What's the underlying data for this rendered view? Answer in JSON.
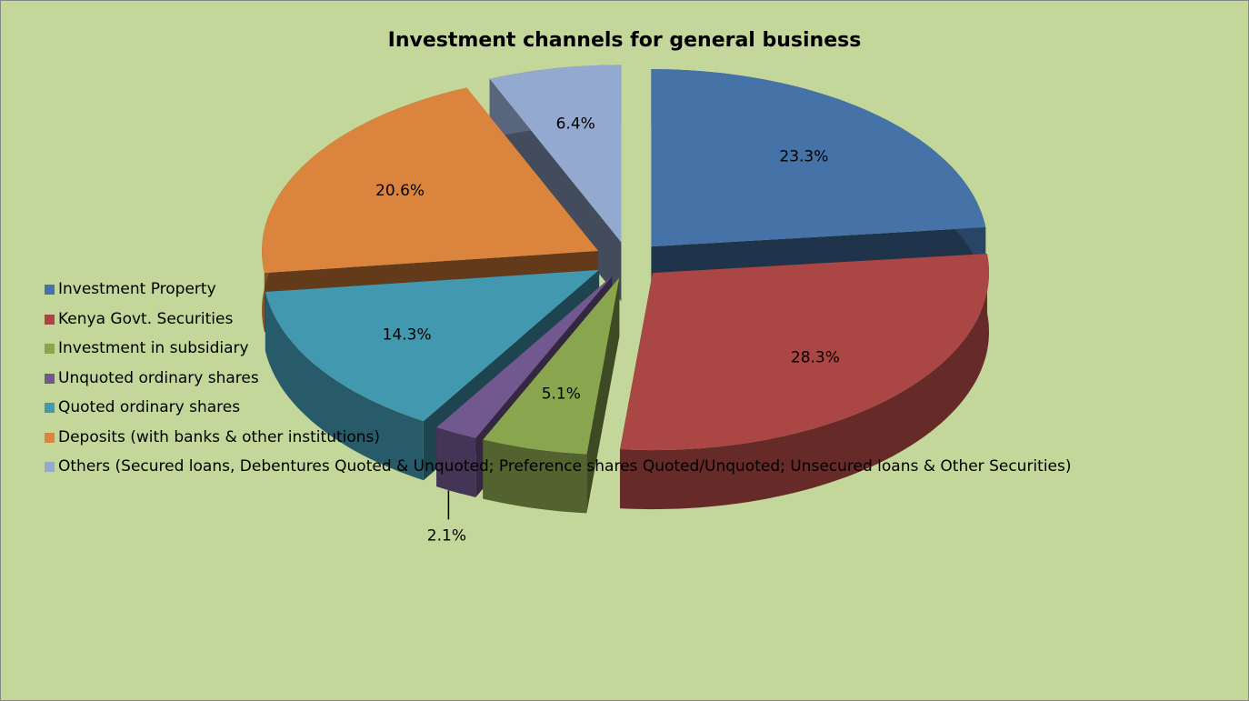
{
  "chart_data": {
    "type": "pie3d",
    "title": "Investment channels for general business",
    "categories": [
      "Investment Property",
      "Kenya Govt. Securities",
      "Investment in subsidiary",
      "Unquoted ordinary shares",
      "Quoted ordinary shares",
      "Deposits (with banks & other institutions)",
      "Others (Secured loans, Debentures Quoted & Unquoted; Preference shares Quoted/Unquoted; Unsecured loans & Other Securities)"
    ],
    "values": [
      23.3,
      28.3,
      5.1,
      2.1,
      14.3,
      20.6,
      6.4
    ],
    "value_labels": [
      "23.3%",
      "28.3%",
      "5.1%",
      "2.1%",
      "14.3%",
      "20.6%",
      "6.4%"
    ],
    "colors": [
      "#4572a7",
      "#aa4643",
      "#89a54e",
      "#71588f",
      "#4198af",
      "#db843d",
      "#93a9cf"
    ],
    "legend": "left"
  }
}
